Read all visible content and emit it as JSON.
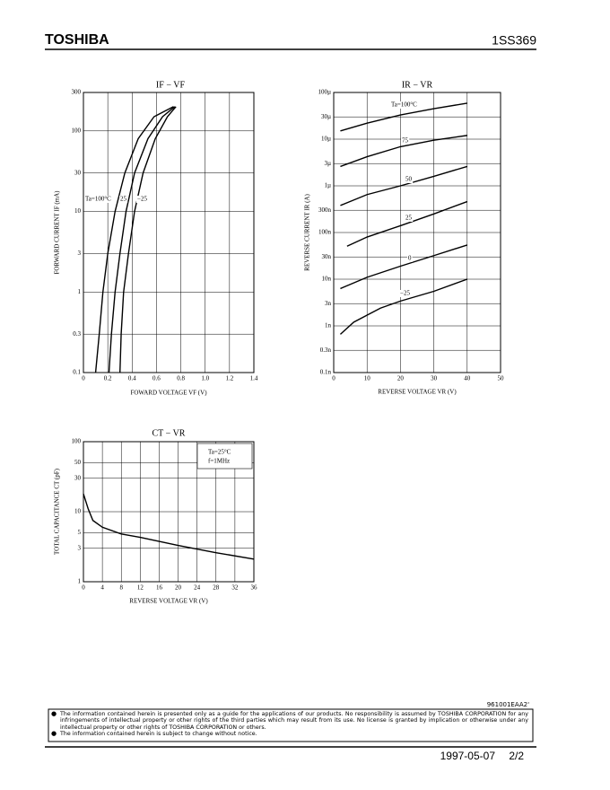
{
  "header": {
    "company": "TOSHIBA",
    "part": "1SS369"
  },
  "chart_data": [
    {
      "type": "line",
      "title": "IF − VF",
      "xlabel": "FOWARD VOLTAGE VF (V)",
      "ylabel": "FORWARD CURRENT IF (mA)",
      "y_scale": "log",
      "grid": true,
      "xlim": [
        0,
        1.4
      ],
      "xticks": [
        0,
        0.2,
        0.4,
        0.6,
        0.8,
        {
          "value": 1,
          "label": "1.0"
        },
        1.2,
        1.4
      ],
      "ylim": [
        0.1,
        300
      ],
      "yticks": [
        0.1,
        0.3,
        1,
        3,
        10,
        30,
        100,
        300
      ],
      "series": [
        {
          "name": "Ta=100°C",
          "color": "#000000",
          "x": [
            0.1,
            0.13,
            0.16,
            0.2,
            0.26,
            0.34,
            0.45,
            0.58,
            0.74
          ],
          "values": [
            0.1,
            0.3,
            1,
            3,
            10,
            30,
            80,
            150,
            200
          ]
        },
        {
          "name": "25",
          "color": "#000000",
          "x": [
            0.21,
            0.23,
            0.26,
            0.3,
            0.35,
            0.42,
            0.53,
            0.65,
            0.75
          ],
          "values": [
            0.1,
            0.3,
            1,
            3,
            10,
            30,
            80,
            150,
            200
          ]
        },
        {
          "name": "−25",
          "color": "#000000",
          "x": [
            0.3,
            0.31,
            0.33,
            0.37,
            0.42,
            0.49,
            0.59,
            0.69,
            0.76
          ],
          "values": [
            0.1,
            0.3,
            1,
            3,
            10,
            30,
            80,
            150,
            200
          ]
        }
      ]
    },
    {
      "type": "line",
      "title": "IR − VR",
      "xlabel": "REVERSE VOLTAGE VR (V)",
      "ylabel": "REVERSE CURRENT IR (A)",
      "y_scale": "log",
      "grid": true,
      "xlim": [
        0,
        50
      ],
      "xticks": [
        0,
        10,
        20,
        30,
        40,
        50
      ],
      "ylim": [
        1e-10,
        0.0001
      ],
      "yticks": [
        {
          "value": 1e-10,
          "label": "0.1n"
        },
        {
          "value": 3e-10,
          "label": "0.3n"
        },
        {
          "value": 1e-09,
          "label": "1n"
        },
        {
          "value": 3e-09,
          "label": "3n"
        },
        {
          "value": 1e-08,
          "label": "10n"
        },
        {
          "value": 3e-08,
          "label": "30n"
        },
        {
          "value": 1e-07,
          "label": "100n"
        },
        {
          "value": 3e-07,
          "label": "300n"
        },
        {
          "value": 1e-06,
          "label": "1µ"
        },
        {
          "value": 3e-06,
          "label": "3µ"
        },
        {
          "value": 1e-05,
          "label": "10µ"
        },
        {
          "value": 3e-05,
          "label": "30µ"
        },
        {
          "value": 0.0001,
          "label": "100µ"
        }
      ],
      "series": [
        {
          "name": "Ta=100°C",
          "color": "#000000",
          "x": [
            2,
            10,
            20,
            30,
            40
          ],
          "values": [
            1.5e-05,
            2.2e-05,
            3.3e-05,
            4.5e-05,
            5.9e-05
          ]
        },
        {
          "name": "75",
          "color": "#000000",
          "x": [
            2,
            10,
            20,
            30,
            40
          ],
          "values": [
            2.6e-06,
            4.2e-06,
            6.9e-06,
            9.5e-06,
            1.2e-05
          ]
        },
        {
          "name": "50",
          "color": "#000000",
          "x": [
            2,
            10,
            20,
            30,
            40
          ],
          "values": [
            3.8e-07,
            6.5e-07,
            1e-06,
            1.6e-06,
            2.6e-06
          ]
        },
        {
          "name": "25",
          "color": "#000000",
          "x": [
            4,
            10,
            20,
            30,
            40
          ],
          "values": [
            5.1e-08,
            8e-08,
            1.4e-07,
            2.5e-07,
            4.6e-07
          ]
        },
        {
          "name": "0",
          "color": "#000000",
          "x": [
            2,
            10,
            20,
            30,
            40
          ],
          "values": [
            6.3e-09,
            1.1e-08,
            1.9e-08,
            3.2e-08,
            5.4e-08
          ]
        },
        {
          "name": "−25",
          "color": "#000000",
          "x": [
            2,
            6,
            14,
            20,
            30,
            40
          ],
          "values": [
            6.6e-10,
            1.2e-09,
            2.4e-09,
            3.4e-09,
            5.5e-09,
            1e-08
          ]
        }
      ]
    },
    {
      "type": "line",
      "title": "CT − VR",
      "xlabel": "REVERSE VOLTAGE VR (V)",
      "ylabel": "TOTAL CAPACITANCE CT (pF)",
      "y_scale": "log",
      "grid": true,
      "xlim": [
        0,
        36
      ],
      "xticks": [
        0,
        4,
        8,
        12,
        16,
        20,
        24,
        28,
        32,
        36
      ],
      "ylim": [
        1,
        100
      ],
      "yticks": [
        1,
        3,
        5,
        10,
        30,
        50,
        100
      ],
      "annotations": [
        "Ta=25°C",
        "f=1MHz"
      ],
      "series": [
        {
          "color": "#000000",
          "x": [
            0,
            1,
            2,
            4,
            8,
            12,
            20,
            28,
            36
          ],
          "values": [
            18,
            11,
            7.5,
            6,
            4.8,
            4.3,
            3.3,
            2.6,
            2.1
          ]
        }
      ]
    }
  ],
  "footer": {
    "code": "961001EAA2'",
    "notices": [
      "The information contained herein is presented only as a guide for the applications of our products. No responsibility is assumed by TOSHIBA CORPORATION for any infringements of intellectual property or other rights of the third parties which may result from its use. No license is granted by implication or otherwise under any intellectual property or other rights of TOSHIBA CORPORATION or others.",
      "The information contained herein is subject to change without notice."
    ],
    "date": "1997-05-07",
    "page": "2/2"
  }
}
